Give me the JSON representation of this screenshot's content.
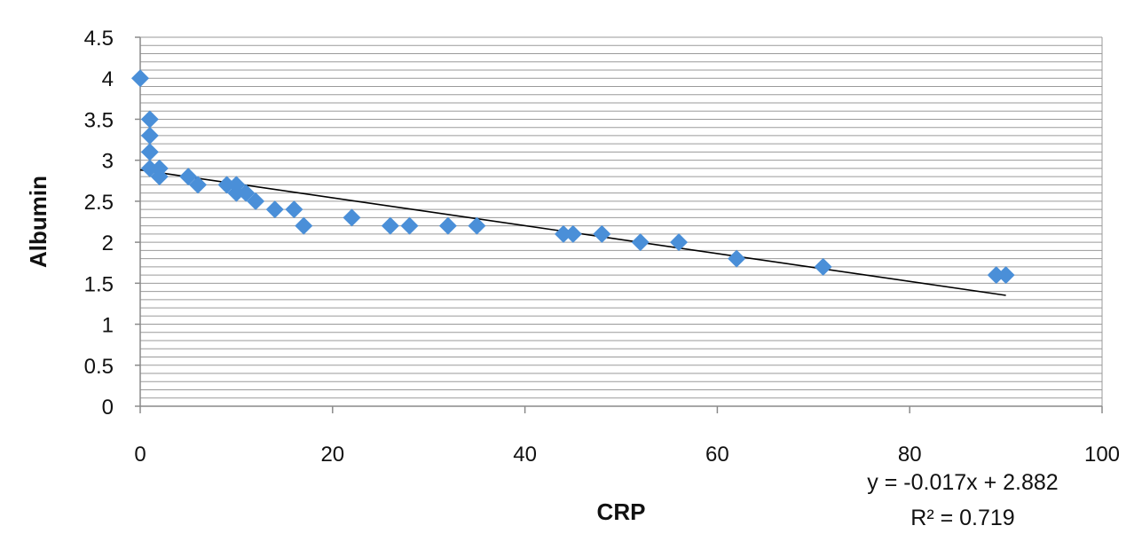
{
  "chart_data": {
    "type": "scatter",
    "xlabel": "CRP",
    "ylabel": "Albumin",
    "xlim": [
      0,
      100
    ],
    "ylim": [
      0,
      4.5
    ],
    "x_ticks": [
      "0",
      "20",
      "40",
      "60",
      "80",
      "100"
    ],
    "y_ticks": [
      "0",
      "0.5",
      "1",
      "1.5",
      "2",
      "2.5",
      "3",
      "3.5",
      "4",
      "4.5"
    ],
    "grid": "horizontal minor gridlines every 0.1",
    "legend": "none",
    "marker": "diamond",
    "marker_color": "#4a8fd8",
    "series": [
      {
        "x": [
          0,
          1,
          1,
          1,
          1,
          2,
          2,
          2,
          5,
          6,
          9,
          10,
          10,
          11,
          12,
          14,
          16,
          17,
          22,
          26,
          28,
          32,
          35,
          44,
          45,
          48,
          52,
          56,
          62,
          71,
          89,
          90
        ],
        "y": [
          4.0,
          3.5,
          3.3,
          3.1,
          2.9,
          2.9,
          2.8,
          2.9,
          2.8,
          2.7,
          2.7,
          2.6,
          2.7,
          2.6,
          2.5,
          2.4,
          2.4,
          2.2,
          2.3,
          2.2,
          2.2,
          2.2,
          2.2,
          2.1,
          2.1,
          2.1,
          2.0,
          2.0,
          1.8,
          1.7,
          1.6,
          1.6
        ]
      }
    ],
    "trendline": {
      "type": "linear",
      "slope": -0.017,
      "intercept": 2.882,
      "x_range": [
        0,
        90
      ],
      "color": "#000000",
      "equation_label": "y = -0.017x + 2.882",
      "r2_label": "R² = 0.719"
    }
  }
}
